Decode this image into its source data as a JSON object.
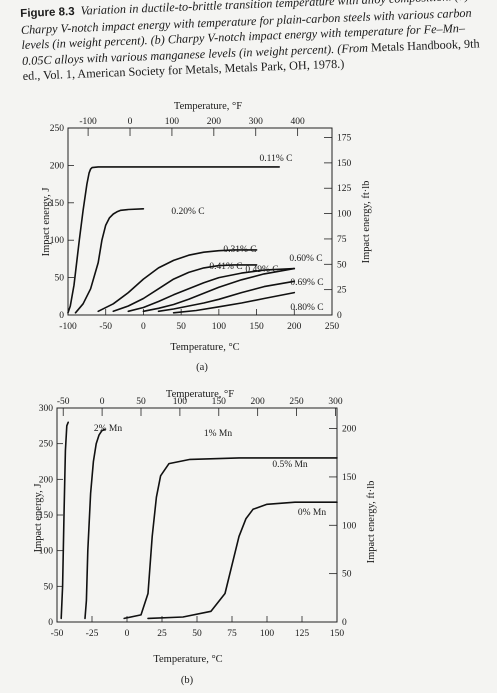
{
  "caption": {
    "figure_label": "Figure 8.3",
    "text_italic": "Variation in ductile-to-brittle transition temperature with alloy composition. (a) Charpy V-notch impact energy with temperature for plain-carbon steels with various carbon levels (in weight percent). (b) Charpy V-notch impact energy with temperature for Fe–Mn–0.05C alloys with various manganese levels (in weight percent). (From",
    "text_roman": "Metals Handbook, 9th ed., Vol. 1, American Society for Metals, Metals Park, OH, 1978.)"
  },
  "chart_data": [
    {
      "type": "line",
      "panel_label": "(a)",
      "xlabel": "Temperature, °C",
      "x2label": "Temperature, °F",
      "ylabel": "Impact energy, J",
      "y2label": "Impact energy, ft·lb",
      "xlim": [
        -100,
        250
      ],
      "ylim": [
        0,
        250
      ],
      "x_ticks": [
        -100,
        -50,
        0,
        50,
        100,
        150,
        200,
        250
      ],
      "y_ticks": [
        0,
        50,
        100,
        150,
        200,
        250
      ],
      "x2_ticks": [
        -100,
        0,
        100,
        200,
        300,
        400
      ],
      "y2_ticks": [
        0,
        25,
        50,
        75,
        100,
        125,
        150,
        175
      ],
      "series": [
        {
          "name": "0.11% C",
          "x": [
            -100,
            -97,
            -92,
            -85,
            -80,
            -75,
            -72,
            -70,
            -68,
            -60,
            -30,
            0,
            50,
            100,
            150,
            180
          ],
          "y": [
            3,
            12,
            40,
            100,
            140,
            175,
            190,
            195,
            197,
            198,
            198,
            198,
            198,
            198,
            198,
            198
          ]
        },
        {
          "name": "0.20% C",
          "x": [
            -90,
            -80,
            -70,
            -60,
            -55,
            -50,
            -45,
            -40,
            -35,
            -30,
            -20,
            0
          ],
          "y": [
            3,
            15,
            35,
            70,
            100,
            120,
            130,
            135,
            138,
            140,
            141,
            142
          ]
        },
        {
          "name": "0.31% C",
          "x": [
            -60,
            -40,
            -20,
            0,
            20,
            40,
            60,
            80,
            100,
            120,
            150
          ],
          "y": [
            5,
            15,
            30,
            48,
            63,
            73,
            80,
            84,
            86,
            87,
            87
          ]
        },
        {
          "name": "0.41% C",
          "x": [
            -40,
            -20,
            0,
            20,
            40,
            60,
            80,
            100,
            120,
            150
          ],
          "y": [
            5,
            12,
            22,
            35,
            48,
            57,
            63,
            66,
            67,
            67
          ]
        },
        {
          "name": "0.49% C",
          "x": [
            -20,
            0,
            20,
            40,
            60,
            80,
            100,
            130,
            160,
            200
          ],
          "y": [
            5,
            10,
            18,
            27,
            35,
            43,
            50,
            56,
            60,
            62
          ]
        },
        {
          "name": "0.60% C",
          "x": [
            0,
            20,
            40,
            60,
            80,
            100,
            130,
            160,
            200
          ],
          "y": [
            5,
            9,
            14,
            21,
            29,
            37,
            47,
            55,
            62
          ]
        },
        {
          "name": "0.69% C",
          "x": [
            20,
            40,
            60,
            80,
            100,
            130,
            160,
            200
          ],
          "y": [
            5,
            8,
            12,
            16,
            21,
            30,
            38,
            45
          ]
        },
        {
          "name": "0.80% C",
          "x": [
            40,
            70,
            100,
            130,
            160,
            200
          ],
          "y": [
            3,
            6,
            11,
            16,
            22,
            30
          ]
        }
      ]
    },
    {
      "type": "line",
      "panel_label": "(b)",
      "xlabel": "Temperature, °C",
      "x2label": "Temperature, °F",
      "ylabel": "Impact energy, J",
      "y2label": "Impact energy, ft·lb",
      "xlim": [
        -50,
        150
      ],
      "ylim": [
        0,
        300
      ],
      "x_ticks": [
        -50,
        -25,
        0,
        25,
        50,
        75,
        100,
        125,
        150
      ],
      "y_ticks": [
        0,
        50,
        100,
        150,
        200,
        250,
        300
      ],
      "x2_ticks": [
        -50,
        0,
        50,
        100,
        150,
        200,
        250,
        300
      ],
      "y2_ticks": [
        0,
        50,
        100,
        150,
        200
      ],
      "series": [
        {
          "name": "2% Mn",
          "x": [
            -47,
            -46,
            -45,
            -44,
            -43,
            -42
          ],
          "y": [
            5,
            50,
            150,
            240,
            275,
            280
          ]
        },
        {
          "name": "1% Mn",
          "x": [
            -30,
            -29,
            -28,
            -26,
            -24,
            -22,
            -20,
            -18,
            -16
          ],
          "y": [
            5,
            30,
            100,
            180,
            225,
            250,
            262,
            268,
            270
          ]
        },
        {
          "name": "0.5% Mn",
          "x": [
            -2,
            10,
            15,
            18,
            21,
            24,
            30,
            45,
            80,
            120,
            150
          ],
          "y": [
            5,
            10,
            40,
            120,
            175,
            205,
            222,
            228,
            230,
            230,
            230
          ]
        },
        {
          "name": "0% Mn",
          "x": [
            15,
            40,
            60,
            70,
            75,
            80,
            85,
            90,
            100,
            120,
            150
          ],
          "y": [
            5,
            7,
            15,
            40,
            80,
            120,
            145,
            158,
            165,
            168,
            168
          ]
        }
      ]
    }
  ]
}
